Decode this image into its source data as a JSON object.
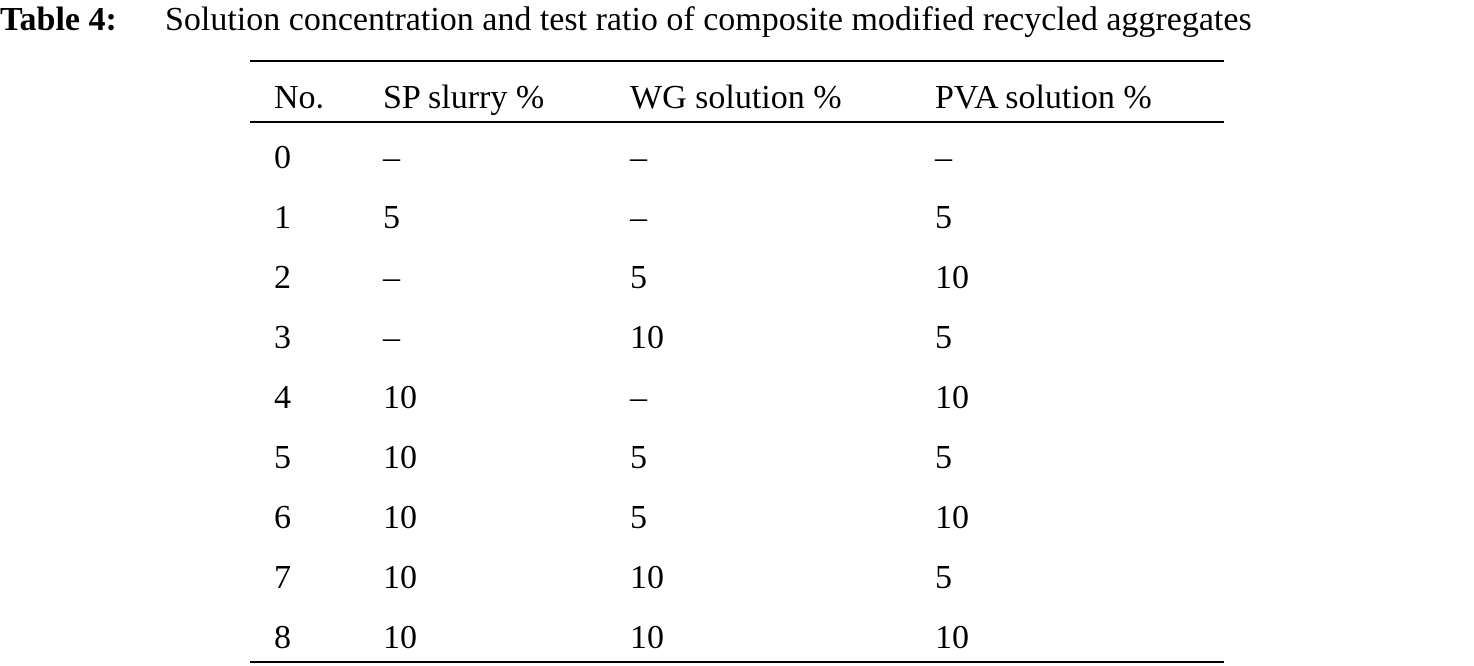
{
  "caption": {
    "label": "Table 4:",
    "text": "Solution concentration and test ratio of composite modified recycled aggregates"
  },
  "table": {
    "header": [
      "No.",
      "SP slurry %",
      "WG solution %",
      "PVA solution %"
    ],
    "rows": [
      [
        0,
        "–",
        "–",
        "–"
      ],
      [
        1,
        5,
        "–",
        5
      ],
      [
        2,
        "–",
        5,
        10
      ],
      [
        3,
        "–",
        10,
        5
      ],
      [
        4,
        10,
        "–",
        10
      ],
      [
        5,
        10,
        5,
        5
      ],
      [
        6,
        10,
        5,
        10
      ],
      [
        7,
        10,
        10,
        5
      ],
      [
        8,
        10,
        10,
        10
      ]
    ]
  }
}
